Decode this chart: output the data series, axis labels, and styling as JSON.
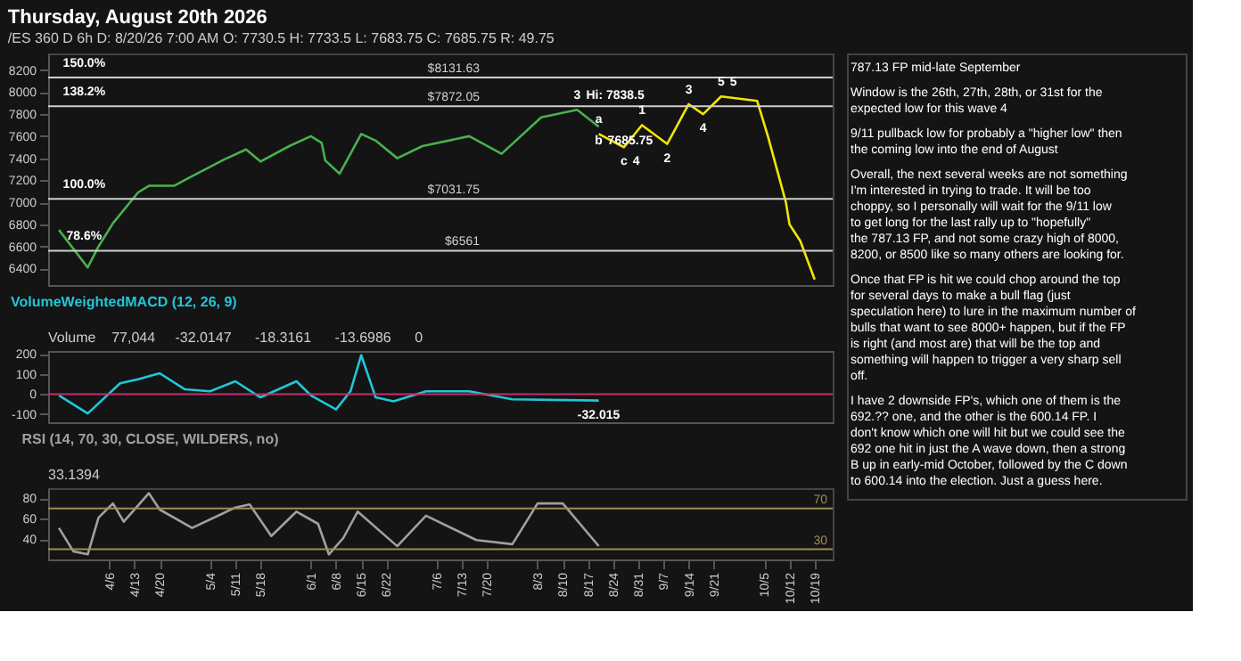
{
  "chart_data": [
    {
      "type": "line",
      "title": "Thursday, August 20th 2026",
      "subtitle": "/ES 360 D 6h   D: 8/20/26 7:00 AM   O: 7730.5   H: 7733.5   L: 7683.75   C: 7685.75   R: 49.75",
      "xlim": [
        "2026-03-20",
        "2026-10-24"
      ],
      "ylim": [
        6250,
        8350
      ],
      "yticks": [
        6400,
        6600,
        6800,
        7000,
        7200,
        7400,
        7600,
        7800,
        8000,
        8200
      ],
      "tick_labels": "y",
      "series": [
        {
          "color": "#49b04f",
          "x": [
            "2026-03-23",
            "2026-03-31",
            "2026-04-03",
            "2026-04-07",
            "2026-04-14",
            "2026-04-17",
            "2026-04-24",
            "2026-04-28",
            "2026-05-08",
            "2026-05-14",
            "2026-05-18",
            "2026-05-26",
            "2026-06-01",
            "2026-06-04",
            "2026-06-05",
            "2026-06-09",
            "2026-06-11",
            "2026-06-15",
            "2026-06-19",
            "2026-06-25",
            "2026-07-02",
            "2026-07-15",
            "2026-07-24",
            "2026-08-04",
            "2026-08-14",
            "2026-08-20"
          ],
          "values": [
            6750,
            6410,
            6600,
            6810,
            7090,
            7150,
            7150,
            7220,
            7390,
            7480,
            7370,
            7510,
            7600,
            7540,
            7380,
            7260,
            7380,
            7620,
            7560,
            7400,
            7510,
            7600,
            7440,
            7770,
            7838.5,
            7685.75
          ]
        },
        {
          "color": "#f2e600",
          "x": [
            "2026-08-20",
            "2026-08-27",
            "2026-09-01",
            "2026-09-08",
            "2026-09-14",
            "2026-09-18",
            "2026-09-23",
            "2026-10-03",
            "2026-10-06",
            "2026-10-11",
            "2026-10-12",
            "2026-10-15",
            "2026-10-19"
          ],
          "values": [
            7620,
            7500,
            7700,
            7530,
            7890,
            7800,
            7960,
            7920,
            7600,
            7000,
            6800,
            6650,
            6300
          ]
        }
      ],
      "ref_lines": [
        {
          "axis": "y",
          "value": 8131.63,
          "label": "$8131.63",
          "color": "#cfcfcf"
        },
        {
          "axis": "y",
          "value": 7872.05,
          "label": "$7872.05",
          "color": "#cfcfcf"
        },
        {
          "axis": "y",
          "value": 7031.75,
          "label": "$7031.75",
          "color": "#cfcfcf"
        },
        {
          "axis": "y",
          "value": 6561,
          "label": "$6561",
          "color": "#cfcfcf"
        }
      ],
      "annotations": [
        {
          "text": "150.0%",
          "x": "2026-03-30",
          "y": 8131.63
        },
        {
          "text": "138.2%",
          "x": "2026-03-30",
          "y": 7872.05
        },
        {
          "text": "100.0%",
          "x": "2026-03-30",
          "y": 7031.75
        },
        {
          "text": "78.6%",
          "x": "2026-03-30",
          "y": 6561
        },
        {
          "text": "3",
          "x": "2026-08-14",
          "y": 7838.5
        },
        {
          "text": "Hi: 7838.5",
          "x": "2026-08-14",
          "y": 7838.5
        },
        {
          "text": "b",
          "x": "2026-08-20",
          "y": 7685.75
        },
        {
          "text": "7685.75",
          "x": "2026-08-20",
          "y": 7685.75
        },
        {
          "text": "a",
          "x": "2026-08-20",
          "y": 7620
        },
        {
          "text": "c",
          "x": "2026-08-27",
          "y": 7500
        },
        {
          "text": "4",
          "x": "2026-08-27",
          "y": 7500
        },
        {
          "text": "1",
          "x": "2026-09-01",
          "y": 7700
        },
        {
          "text": "2",
          "x": "2026-09-08",
          "y": 7530
        },
        {
          "text": "3",
          "x": "2026-09-14",
          "y": 7890
        },
        {
          "text": "4",
          "x": "2026-09-18",
          "y": 7800
        },
        {
          "text": "5",
          "x": "2026-09-23",
          "y": 7960
        },
        {
          "text": "5",
          "x": "2026-09-23",
          "y": 7960
        },
        "787.13 FP mid-late September",
        "Window is the 26th, 27th, 28th, or 31st for the expected low for this wave 4",
        "9/11 pullback low for probably a \"higher low\" then the coming low into the end of August",
        "Overall, the next several weeks are not something I'm interested in trying to trade.  It will be too choppy, so I personally will wait for the 9/11 low to get long for the last rally up to \"hopefully\" the 787.13 FP, and not some crazy high of 8000, 8200, or 8500 like so many others are looking for.",
        "Once that FP is hit we could chop around the top for several days to make a bull flag (just speculation here) to lure in the maximum number of bulls that want to see 8000+ happen, but if the FP is right (and most are) that will be the top and something will happen to trigger a very sharp sell off.",
        "I have 2 downside FP's, which one of them is the 692.?? one, and the other is the 600.14 FP.  I don't know which one will hit but we could see the 692 one hit in just the A wave down, then a strong B up in early-mid October, followed by the C down to 600.14 into the election.  Just a guess here."
      ]
    },
    {
      "type": "line",
      "xlim": [
        "2026-03-20",
        "2026-10-24"
      ],
      "ylim": [
        -140,
        215
      ],
      "yticks": [
        -100,
        0,
        100,
        200
      ],
      "tick_labels": "y",
      "series": [
        {
          "name": "VolumeWeightedMACD (12, 26, 9)",
          "color": "#21c7d8",
          "x": [
            "2026-03-23",
            "2026-03-31",
            "2026-04-09",
            "2026-04-14",
            "2026-04-20",
            "2026-04-27",
            "2026-05-04",
            "2026-05-11",
            "2026-05-18",
            "2026-05-28",
            "2026-06-01",
            "2026-06-08",
            "2026-06-12",
            "2026-06-15",
            "2026-06-19",
            "2026-06-24",
            "2026-07-03",
            "2026-07-15",
            "2026-07-27",
            "2026-08-20"
          ],
          "values": [
            -6,
            -96,
            54,
            74,
            104,
            24,
            14,
            64,
            -16,
            64,
            -6,
            -76,
            14,
            194,
            -16,
            -36,
            14,
            14,
            -26,
            -32.0147
          ]
        }
      ],
      "ref_lines": [
        {
          "axis": "y",
          "value": 0,
          "label": null,
          "color": "#c0306a"
        }
      ],
      "annotations": [
        "Volume",
        "77,044",
        "-32.0147",
        "-18.3161",
        "-13.6986",
        "0",
        {
          "text": "-32.015",
          "x": "2026-08-20",
          "y": -32.0147
        }
      ]
    },
    {
      "type": "line",
      "xlim": [
        "2026-03-20",
        "2026-10-24"
      ],
      "xticks": [
        {
          "value": "2026-04-06",
          "label": "4/6"
        },
        {
          "value": "2026-04-13",
          "label": "4/13"
        },
        {
          "value": "2026-04-20",
          "label": "4/20"
        },
        {
          "value": "2026-05-04",
          "label": "5/4"
        },
        {
          "value": "2026-05-11",
          "label": "5/11"
        },
        {
          "value": "2026-05-18",
          "label": "5/18"
        },
        {
          "value": "2026-06-01",
          "label": "6/1"
        },
        {
          "value": "2026-06-08",
          "label": "6/8"
        },
        {
          "value": "2026-06-15",
          "label": "6/15"
        },
        {
          "value": "2026-06-22",
          "label": "6/22"
        },
        {
          "value": "2026-07-06",
          "label": "7/6"
        },
        {
          "value": "2026-07-13",
          "label": "7/13"
        },
        {
          "value": "2026-07-20",
          "label": "7/20"
        },
        {
          "value": "2026-08-03",
          "label": "8/3"
        },
        {
          "value": "2026-08-10",
          "label": "8/10"
        },
        {
          "value": "2026-08-17",
          "label": "8/17"
        },
        {
          "value": "2026-08-24",
          "label": "8/24"
        },
        {
          "value": "2026-08-31",
          "label": "8/31"
        },
        {
          "value": "2026-09-07",
          "label": "9/7"
        },
        {
          "value": "2026-09-14",
          "label": "9/14"
        },
        {
          "value": "2026-09-21",
          "label": "9/21"
        },
        {
          "value": "2026-10-05",
          "label": "10/5"
        },
        {
          "value": "2026-10-12",
          "label": "10/12"
        },
        {
          "value": "2026-10-19",
          "label": "10/19"
        }
      ],
      "ylim": [
        20,
        90
      ],
      "yticks": [
        40,
        60,
        80
      ],
      "series": [
        {
          "name": "RSI (14, 70, 30, CLOSE, WILDERS, no)",
          "color": "#a0a0a0",
          "x": [
            "2026-03-23",
            "2026-03-27",
            "2026-03-31",
            "2026-04-03",
            "2026-04-07",
            "2026-04-10",
            "2026-04-17",
            "2026-04-20",
            "2026-04-29",
            "2026-05-11",
            "2026-05-15",
            "2026-05-21",
            "2026-05-28",
            "2026-06-03",
            "2026-06-06",
            "2026-06-10",
            "2026-06-14",
            "2026-06-25",
            "2026-07-03",
            "2026-07-17",
            "2026-07-27",
            "2026-08-03",
            "2026-08-10",
            "2026-08-20"
          ],
          "values": [
            51,
            28,
            25,
            61,
            75,
            57,
            85,
            69,
            51,
            71,
            74,
            43,
            67,
            55,
            25,
            41,
            67,
            33,
            63,
            39,
            35,
            75,
            75,
            33.1394
          ]
        }
      ],
      "ref_lines": [
        {
          "axis": "y",
          "value": 30,
          "label": "30",
          "color": "#9c8f52"
        },
        {
          "axis": "y",
          "value": 70,
          "label": "70",
          "color": "#9c8f52"
        }
      ],
      "annotations": [
        "33.1394"
      ]
    }
  ]
}
